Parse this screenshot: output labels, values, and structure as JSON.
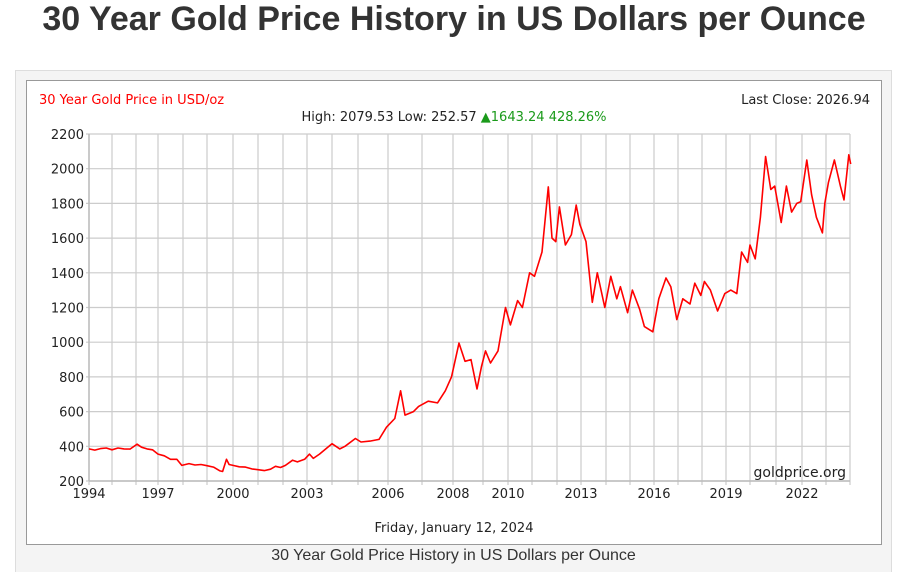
{
  "page": {
    "title": "30 Year Gold Price History in US Dollars per Ounce",
    "caption": "30 Year Gold Price History in US Dollars per Ounce"
  },
  "colors": {
    "line": "#ff0000",
    "title": "#ff0000",
    "up": "#1a9a1a",
    "grid": "#cccccc"
  },
  "chart_data": {
    "type": "line",
    "title": "30 Year Gold Price in USD/oz",
    "last_close": "Last Close: 2026.94",
    "stats": {
      "high_label": "High: 2079.53",
      "low_label": "Low: 252.57",
      "change": "1643.24",
      "change_pct": "428.26%",
      "direction": "up"
    },
    "date": "Friday, January 12, 2024",
    "watermark": "goldprice.org",
    "xlabel": "",
    "ylabel": "",
    "xlim": [
      1994,
      2024
    ],
    "ylim": [
      200,
      2200
    ],
    "grid": true,
    "x_ticks": [
      "1994",
      "1997",
      "2000",
      "2003",
      "2006",
      "2008",
      "2010",
      "2013",
      "2016",
      "2019",
      "2022"
    ],
    "y_ticks": [
      "200",
      "400",
      "600",
      "800",
      "1000",
      "1200",
      "1400",
      "1600",
      "1800",
      "2000",
      "2200"
    ],
    "series": [
      {
        "points": [
          [
            1994.0,
            385
          ],
          [
            1994.25,
            378
          ],
          [
            1994.5,
            387
          ],
          [
            1994.75,
            390
          ],
          [
            1995.0,
            380
          ],
          [
            1995.25,
            390
          ],
          [
            1995.5,
            385
          ],
          [
            1995.75,
            384
          ],
          [
            1996.05,
            412
          ],
          [
            1996.25,
            395
          ],
          [
            1996.5,
            385
          ],
          [
            1996.75,
            380
          ],
          [
            1997.0,
            355
          ],
          [
            1997.25,
            345
          ],
          [
            1997.5,
            325
          ],
          [
            1997.75,
            325
          ],
          [
            1997.95,
            290
          ],
          [
            1998.25,
            300
          ],
          [
            1998.5,
            292
          ],
          [
            1998.75,
            295
          ],
          [
            1999.0,
            288
          ],
          [
            1999.25,
            280
          ],
          [
            1999.5,
            258
          ],
          [
            1999.6,
            255
          ],
          [
            1999.75,
            325
          ],
          [
            1999.85,
            295
          ],
          [
            2000.0,
            290
          ],
          [
            2000.25,
            282
          ],
          [
            2000.5,
            280
          ],
          [
            2000.75,
            270
          ],
          [
            2001.0,
            265
          ],
          [
            2001.25,
            260
          ],
          [
            2001.5,
            268
          ],
          [
            2001.7,
            285
          ],
          [
            2001.9,
            278
          ],
          [
            2002.1,
            290
          ],
          [
            2002.4,
            320
          ],
          [
            2002.6,
            310
          ],
          [
            2002.9,
            325
          ],
          [
            2003.1,
            355
          ],
          [
            2003.25,
            330
          ],
          [
            2003.5,
            355
          ],
          [
            2003.75,
            385
          ],
          [
            2004.0,
            415
          ],
          [
            2004.3,
            385
          ],
          [
            2004.5,
            400
          ],
          [
            2004.9,
            445
          ],
          [
            2005.1,
            425
          ],
          [
            2005.4,
            430
          ],
          [
            2005.7,
            440
          ],
          [
            2005.95,
            510
          ],
          [
            2006.2,
            560
          ],
          [
            2006.37,
            720
          ],
          [
            2006.5,
            580
          ],
          [
            2006.75,
            600
          ],
          [
            2006.9,
            630
          ],
          [
            2007.2,
            660
          ],
          [
            2007.5,
            650
          ],
          [
            2007.75,
            720
          ],
          [
            2007.95,
            800
          ],
          [
            2008.2,
            995
          ],
          [
            2008.4,
            890
          ],
          [
            2008.6,
            900
          ],
          [
            2008.8,
            730
          ],
          [
            2008.95,
            860
          ],
          [
            2009.1,
            950
          ],
          [
            2009.3,
            880
          ],
          [
            2009.6,
            950
          ],
          [
            2009.9,
            1200
          ],
          [
            2010.1,
            1100
          ],
          [
            2010.4,
            1240
          ],
          [
            2010.6,
            1200
          ],
          [
            2010.9,
            1400
          ],
          [
            2011.1,
            1380
          ],
          [
            2011.4,
            1520
          ],
          [
            2011.65,
            1895
          ],
          [
            2011.8,
            1600
          ],
          [
            2011.95,
            1580
          ],
          [
            2012.1,
            1780
          ],
          [
            2012.35,
            1560
          ],
          [
            2012.6,
            1620
          ],
          [
            2012.8,
            1790
          ],
          [
            2012.95,
            1680
          ],
          [
            2013.2,
            1580
          ],
          [
            2013.45,
            1230
          ],
          [
            2013.65,
            1400
          ],
          [
            2013.95,
            1200
          ],
          [
            2014.2,
            1380
          ],
          [
            2014.45,
            1250
          ],
          [
            2014.6,
            1320
          ],
          [
            2014.9,
            1170
          ],
          [
            2015.1,
            1300
          ],
          [
            2015.4,
            1190
          ],
          [
            2015.6,
            1090
          ],
          [
            2015.95,
            1060
          ],
          [
            2016.2,
            1250
          ],
          [
            2016.5,
            1370
          ],
          [
            2016.7,
            1320
          ],
          [
            2016.95,
            1130
          ],
          [
            2017.2,
            1250
          ],
          [
            2017.5,
            1220
          ],
          [
            2017.7,
            1340
          ],
          [
            2017.95,
            1270
          ],
          [
            2018.1,
            1350
          ],
          [
            2018.35,
            1300
          ],
          [
            2018.65,
            1180
          ],
          [
            2018.95,
            1280
          ],
          [
            2019.2,
            1300
          ],
          [
            2019.45,
            1280
          ],
          [
            2019.65,
            1520
          ],
          [
            2019.9,
            1460
          ],
          [
            2020.0,
            1560
          ],
          [
            2020.2,
            1480
          ],
          [
            2020.4,
            1720
          ],
          [
            2020.6,
            2070
          ],
          [
            2020.8,
            1880
          ],
          [
            2020.95,
            1900
          ],
          [
            2021.2,
            1690
          ],
          [
            2021.4,
            1900
          ],
          [
            2021.6,
            1750
          ],
          [
            2021.8,
            1800
          ],
          [
            2021.95,
            1810
          ],
          [
            2022.2,
            2050
          ],
          [
            2022.4,
            1850
          ],
          [
            2022.6,
            1720
          ],
          [
            2022.85,
            1630
          ],
          [
            2022.95,
            1800
          ],
          [
            2023.1,
            1920
          ],
          [
            2023.35,
            2050
          ],
          [
            2023.6,
            1900
          ],
          [
            2023.75,
            1820
          ],
          [
            2023.95,
            2080
          ],
          [
            2024.03,
            2027
          ]
        ]
      }
    ]
  }
}
